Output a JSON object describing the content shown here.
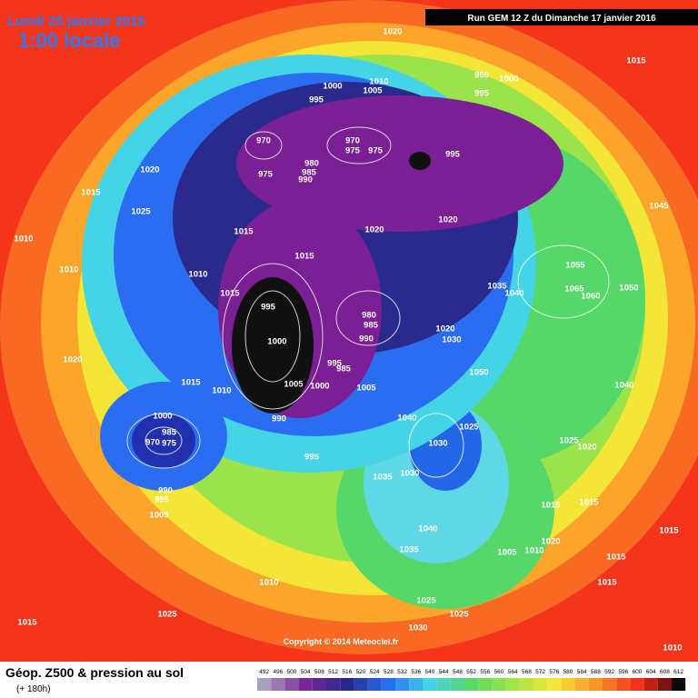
{
  "header": {
    "date": "Lundi 25 janvier 2016",
    "time": "1:00 locale",
    "run": "Run GEM 12 Z du Dimanche 17 janvier 2016"
  },
  "map": {
    "pressure_labels": [
      1020,
      1015,
      990,
      1000,
      1010,
      1005,
      1000,
      995,
      995,
      970,
      970,
      975,
      975,
      995,
      980,
      985,
      990,
      975,
      1020,
      1015,
      1025,
      1015,
      1020,
      1020,
      1045,
      1010,
      1015,
      1010,
      1010,
      1015,
      1055,
      1035,
      1040,
      1065,
      1060,
      1050,
      995,
      980,
      985,
      990,
      1020,
      1030,
      1000,
      1020,
      995,
      985,
      1015,
      1010,
      1005,
      1000,
      1005,
      1050,
      1040,
      1040,
      1025,
      1000,
      990,
      985,
      970,
      975,
      1030,
      1025,
      1020,
      995,
      1030,
      1035,
      990,
      995,
      1005,
      1015,
      1015,
      1040,
      1015,
      1020,
      1035,
      1005,
      1010,
      1015,
      1010,
      1015,
      1015,
      1025,
      1025,
      1025,
      1030,
      1010
    ]
  },
  "footer": {
    "title": "Géop. Z500 & pression au sol",
    "lead": "(+ 180h)",
    "copyright": "Copyright © 2014 Meteociel.fr"
  },
  "legend": {
    "ticks": [
      492,
      496,
      500,
      504,
      508,
      512,
      516,
      520,
      524,
      528,
      532,
      536,
      540,
      544,
      548,
      552,
      556,
      560,
      564,
      568,
      572,
      576,
      580,
      584,
      588,
      592,
      596,
      600,
      604,
      608,
      612
    ]
  }
}
